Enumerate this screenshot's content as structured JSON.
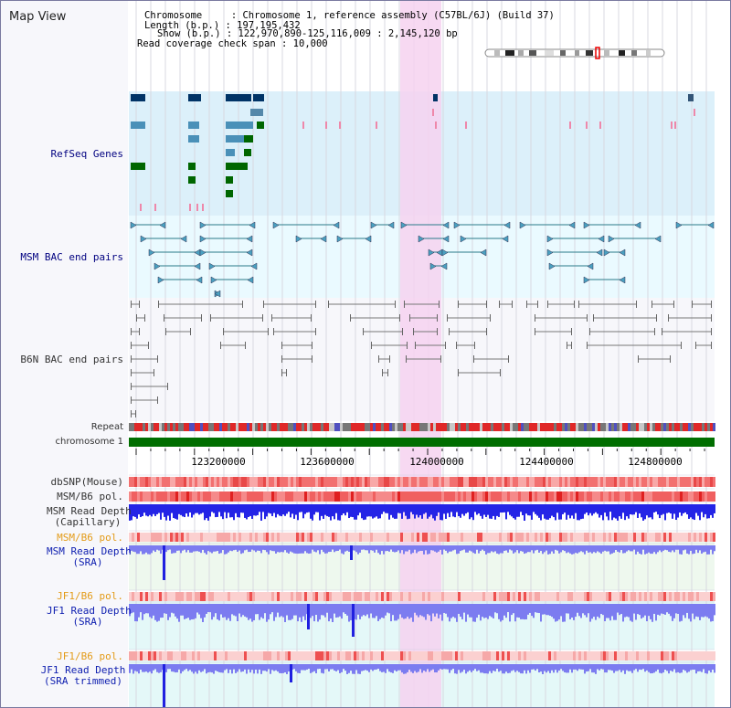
{
  "title": "Map View",
  "info": {
    "chromosome": "Chromosome     : Chromosome 1, reference assembly (C57BL/6J) (Build 37)",
    "length": "Length (b.p.) : 197,195,432",
    "show": "Show (b.p.) : 122,970,890-125,116,009 : 2,145,120 bp",
    "read_coverage": "Read coverage check span : 10,000"
  },
  "tracks": {
    "refseq": "RefSeq Genes",
    "msm_bac": "MSM BAC end pairs",
    "b6n_bac": "B6N BAC end pairs",
    "repeat": "Repeat",
    "chromosome": "chromosome 1",
    "dbsnp": "dbSNP(Mouse)",
    "msm_b6_pol": "MSM/B6 pol.",
    "msm_read_depth_cap_1": "MSM Read Depth",
    "msm_read_depth_cap_2": "(Capillary)",
    "msm_b6_pol_sra": "MSM/B6 pol.",
    "msm_read_depth_sra_1": "MSM Read Depth",
    "msm_read_depth_sra_2": "(SRA)",
    "jf1_b6_pol": "JF1/B6 pol.",
    "jf1_read_depth_1": "JF1 Read Depth",
    "jf1_read_depth_2": "(SRA)",
    "jf1_b6_pol_2": "JF1/B6 pol.",
    "jf1_read_depth_trim_1": "JF1 Read Depth",
    "jf1_read_depth_trim_2": "(SRA trimmed)"
  },
  "axis": {
    "ticks": [
      "123200000",
      "123600000",
      "124000000",
      "124400000",
      "124800000"
    ]
  },
  "colors": {
    "highlight": "#f6d2f0",
    "refseq_bg": "#dcf0fa",
    "msm_bg": "#eafaff",
    "chromosome_bar": "#006e00",
    "snp_red": "#f06060",
    "depth_blue": "#2020e0",
    "depth_light": "#7c7cf0"
  }
}
